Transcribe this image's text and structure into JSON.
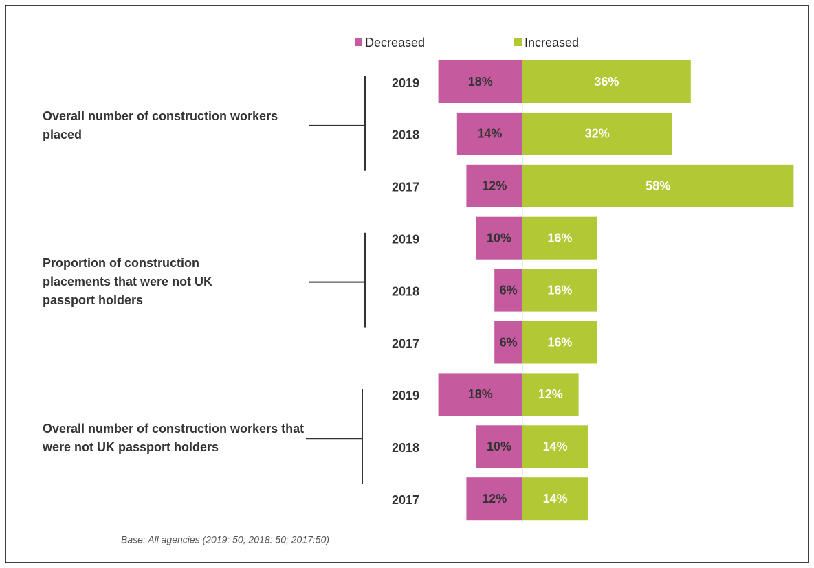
{
  "chart_data": {
    "type": "diverging_bar",
    "groups": [
      {
        "label": "Overall number of construction workers placed"
      },
      {
        "label": "Proportion of construction placements that were not UK passport holders"
      },
      {
        "label": "Overall number of construction workers that were not UK passport holders"
      }
    ],
    "categories": [
      "2019",
      "2018",
      "2017",
      "2019",
      "2018",
      "2017",
      "2019",
      "2018",
      "2017"
    ],
    "series": [
      {
        "name": "Decreased",
        "color": "#c55a9e",
        "values": [
          18,
          14,
          12,
          10,
          6,
          6,
          18,
          10,
          12
        ],
        "value_labels": [
          "18%",
          "14%",
          "12%",
          "10%",
          "6%",
          "6%",
          "18%",
          "10%",
          "12%"
        ]
      },
      {
        "name": "Increased",
        "color": "#b2c935",
        "values": [
          36,
          32,
          58,
          16,
          16,
          16,
          12,
          14,
          14
        ],
        "value_labels": [
          "36%",
          "32%",
          "58%",
          "16%",
          "16%",
          "16%",
          "12%",
          "14%",
          "14%"
        ]
      }
    ],
    "note": "Base: All agencies (2019: 50; 2018: 50; 2017:50)"
  }
}
